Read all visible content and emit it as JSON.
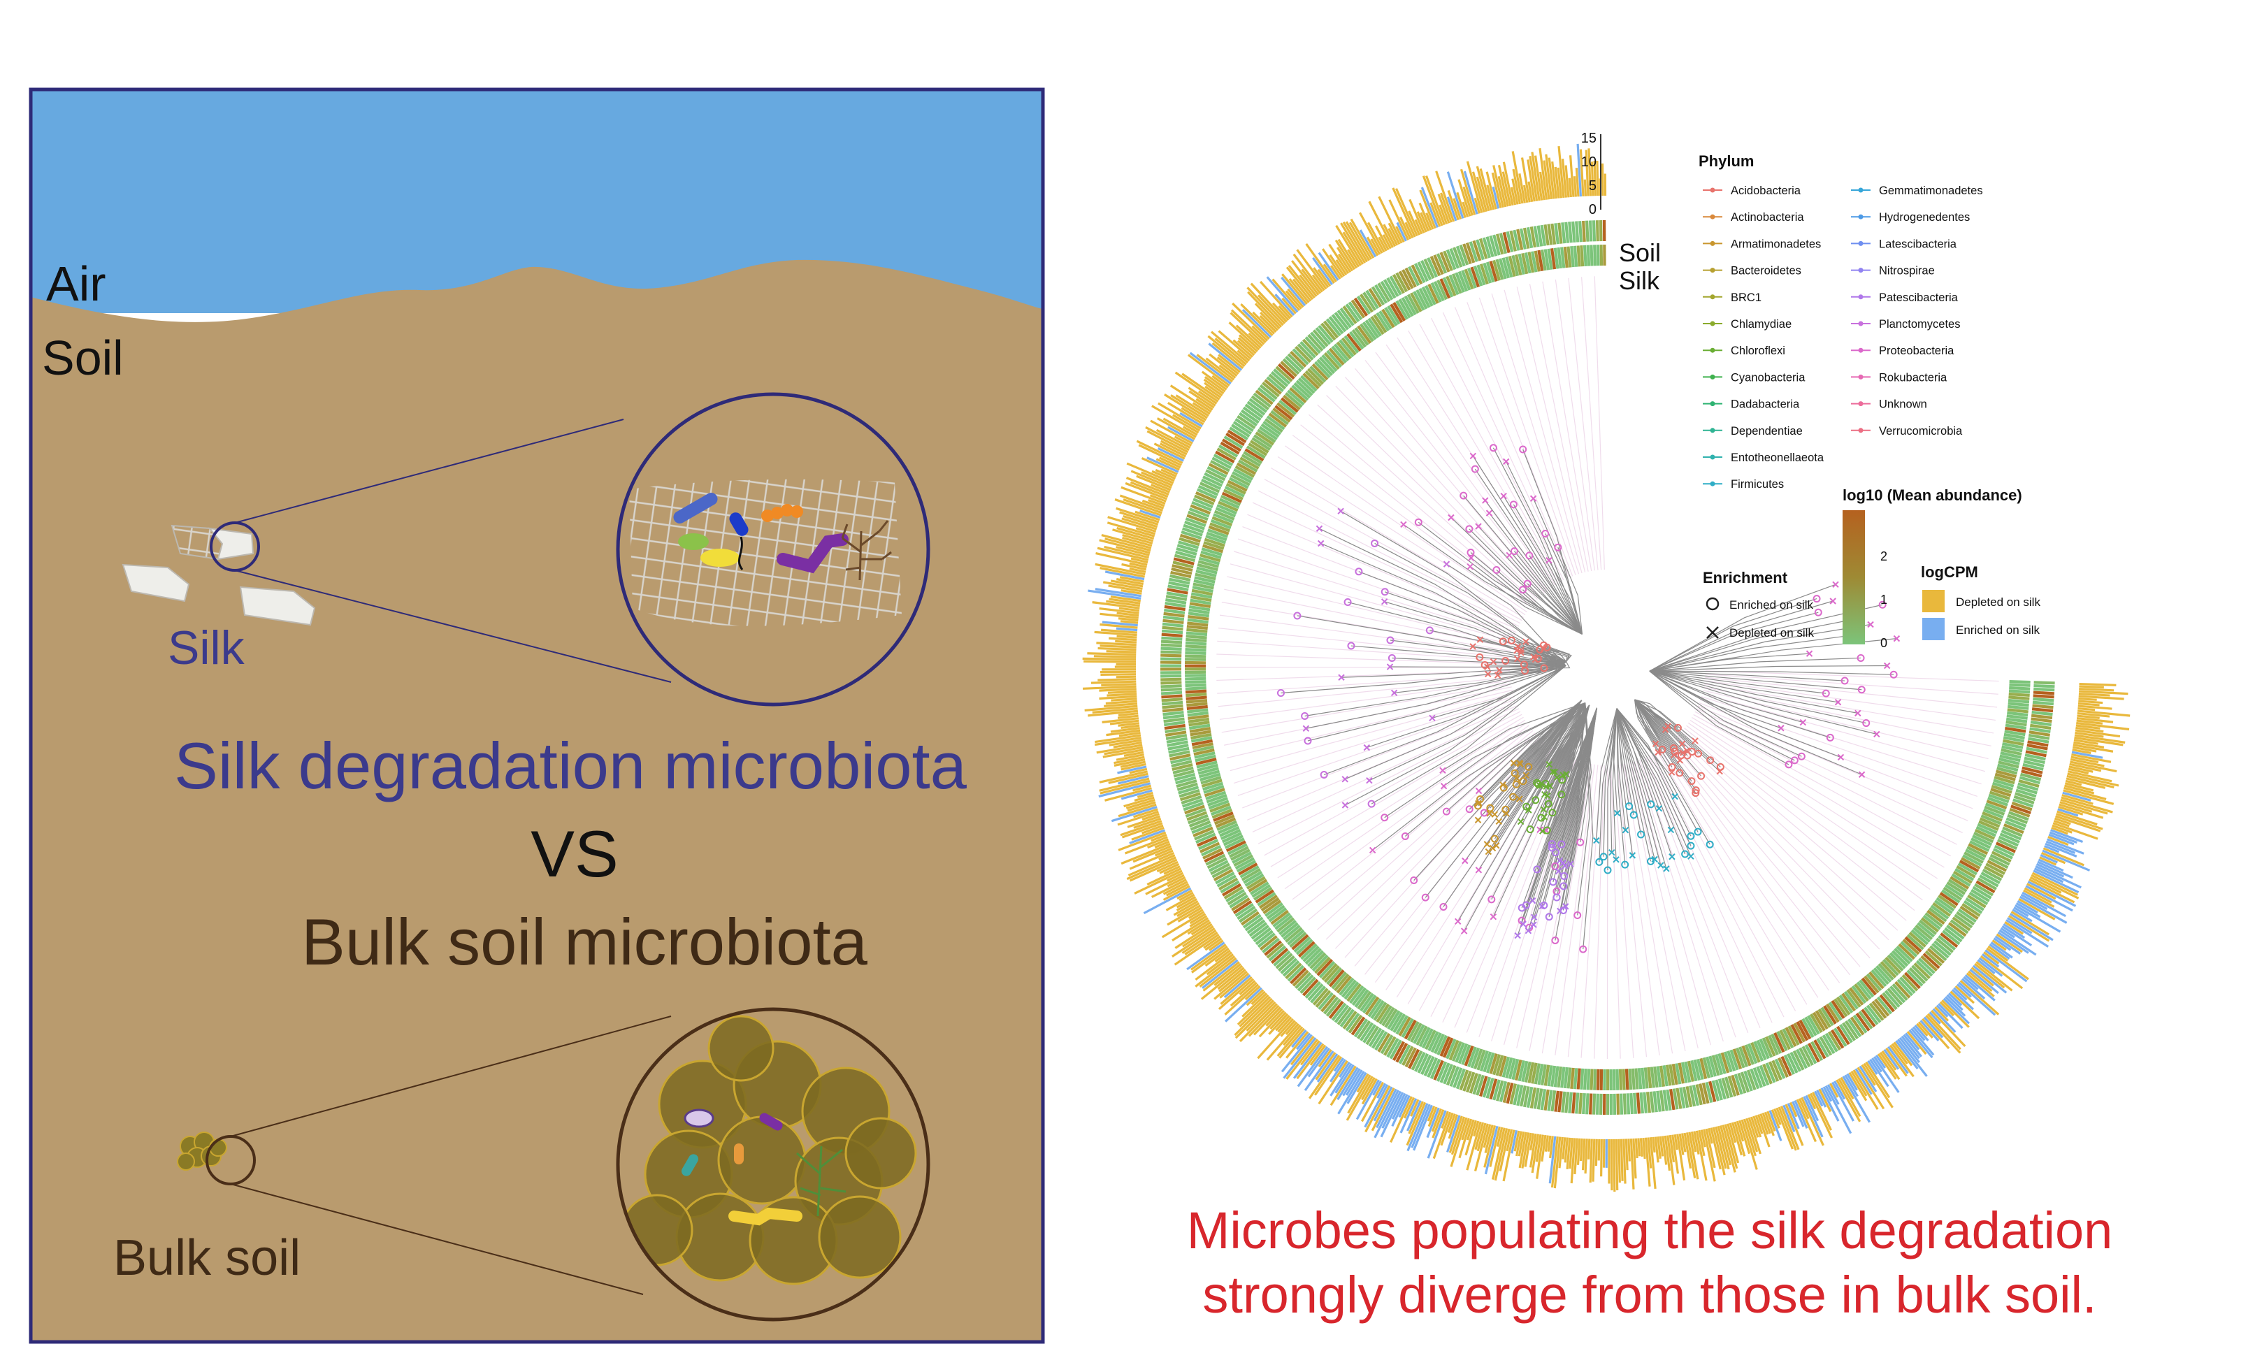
{
  "left_panel": {
    "label_air": "Air",
    "label_soil": "Soil",
    "label_silk": "Silk",
    "headline_silk": "Silk degradation microbiota",
    "headline_vs": "VS",
    "headline_bulk": "Bulk soil microbiota",
    "label_bulk_soil": "Bulk soil",
    "colors": {
      "sky": "#67a9e0",
      "soil": "#b99b6e",
      "frame": "#2e2a78",
      "silk_text": "#3b3a8c",
      "bulk_text": "#3f2a16"
    }
  },
  "tree_figure": {
    "bar_axis_ticks": [
      "15",
      "10",
      "5",
      "0"
    ],
    "ring_label_soil": "Soil",
    "ring_label_silk": "Silk",
    "legend_phylum": {
      "title": "Phylum",
      "items": [
        {
          "label": "Acidobacteria",
          "color": "#e8736c"
        },
        {
          "label": "Actinobacteria",
          "color": "#d9883a"
        },
        {
          "label": "Armatimonadetes",
          "color": "#c9962e"
        },
        {
          "label": "Bacteroidetes",
          "color": "#b7a030"
        },
        {
          "label": "BRC1",
          "color": "#a3a62e"
        },
        {
          "label": "Chlamydiae",
          "color": "#8aab2c"
        },
        {
          "label": "Chloroflexi",
          "color": "#6aae34"
        },
        {
          "label": "Cyanobacteria",
          "color": "#3fb14e"
        },
        {
          "label": "Dadabacteria",
          "color": "#2eb372"
        },
        {
          "label": "Dependentiae",
          "color": "#2fb493"
        },
        {
          "label": "Entotheonellaeota",
          "color": "#30b2ae"
        },
        {
          "label": "Firmicutes",
          "color": "#2fadc6"
        },
        {
          "label": "Gemmatimonadetes",
          "color": "#36a6d9"
        },
        {
          "label": "Hydrogenedentes",
          "color": "#4d9ae6"
        },
        {
          "label": "Latescibacteria",
          "color": "#6f8ff0"
        },
        {
          "label": "Nitrospirae",
          "color": "#9183f1"
        },
        {
          "label": "Patescibacteria",
          "color": "#b078ea"
        },
        {
          "label": "Planctomycetes",
          "color": "#c870dd"
        },
        {
          "label": "Proteobacteria",
          "color": "#db69cb"
        },
        {
          "label": "Rokubacteria",
          "color": "#e669b4"
        },
        {
          "label": "Unknown",
          "color": "#ec6c9b"
        },
        {
          "label": "Verrucomicrobia",
          "color": "#ec6e83"
        }
      ]
    },
    "legend_abundance": {
      "title": "log10 (Mean abundance)",
      "ticks": [
        "2",
        "1",
        "0"
      ],
      "colors": [
        "#b5611f",
        "#9e8a34",
        "#7cc47a"
      ]
    },
    "legend_enrichment": {
      "title": "Enrichment",
      "items": [
        {
          "symbol": "circle",
          "label": "Enriched on silk"
        },
        {
          "symbol": "cross",
          "label": "Depleted on silk"
        }
      ]
    },
    "legend_logcpm": {
      "title": "logCPM",
      "items": [
        {
          "label": "Depleted on silk",
          "color": "#e9b83c"
        },
        {
          "label": "Enriched on silk",
          "color": "#78aef0"
        }
      ]
    }
  },
  "caption": {
    "line1": "Microbes populating the silk degradation",
    "line2": "strongly diverge from those in bulk soil.",
    "color": "#d8262c"
  }
}
